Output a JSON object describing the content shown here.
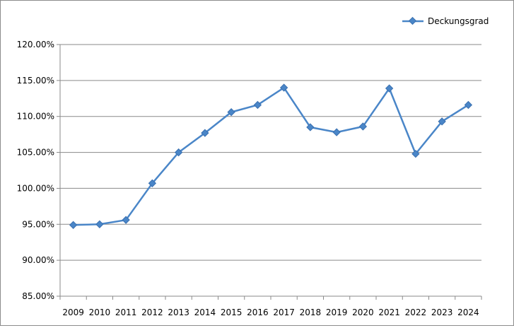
{
  "chart_data": {
    "type": "line",
    "title": "",
    "xlabel": "",
    "ylabel": "",
    "categories": [
      "2009",
      "2010",
      "2011",
      "2012",
      "2013",
      "2014",
      "2015",
      "2016",
      "2017",
      "2018",
      "2019",
      "2020",
      "2021",
      "2022",
      "2023",
      "2024"
    ],
    "series": [
      {
        "name": "Deckungsgrad",
        "color": "#4a86c8",
        "marker": "diamond",
        "values": [
          94.9,
          95.0,
          95.6,
          100.7,
          105.0,
          107.7,
          110.6,
          111.6,
          114.0,
          108.5,
          107.8,
          108.6,
          113.9,
          104.8,
          109.3,
          111.6
        ]
      }
    ],
    "ylim": [
      85,
      120
    ],
    "yticks": [
      "85.00%",
      "90.00%",
      "95.00%",
      "100.00%",
      "105.00%",
      "110.00%",
      "115.00%",
      "120.00%"
    ],
    "ytick_values": [
      85,
      90,
      95,
      100,
      105,
      110,
      115,
      120
    ],
    "grid": "horizontal",
    "legend": "top-right"
  }
}
